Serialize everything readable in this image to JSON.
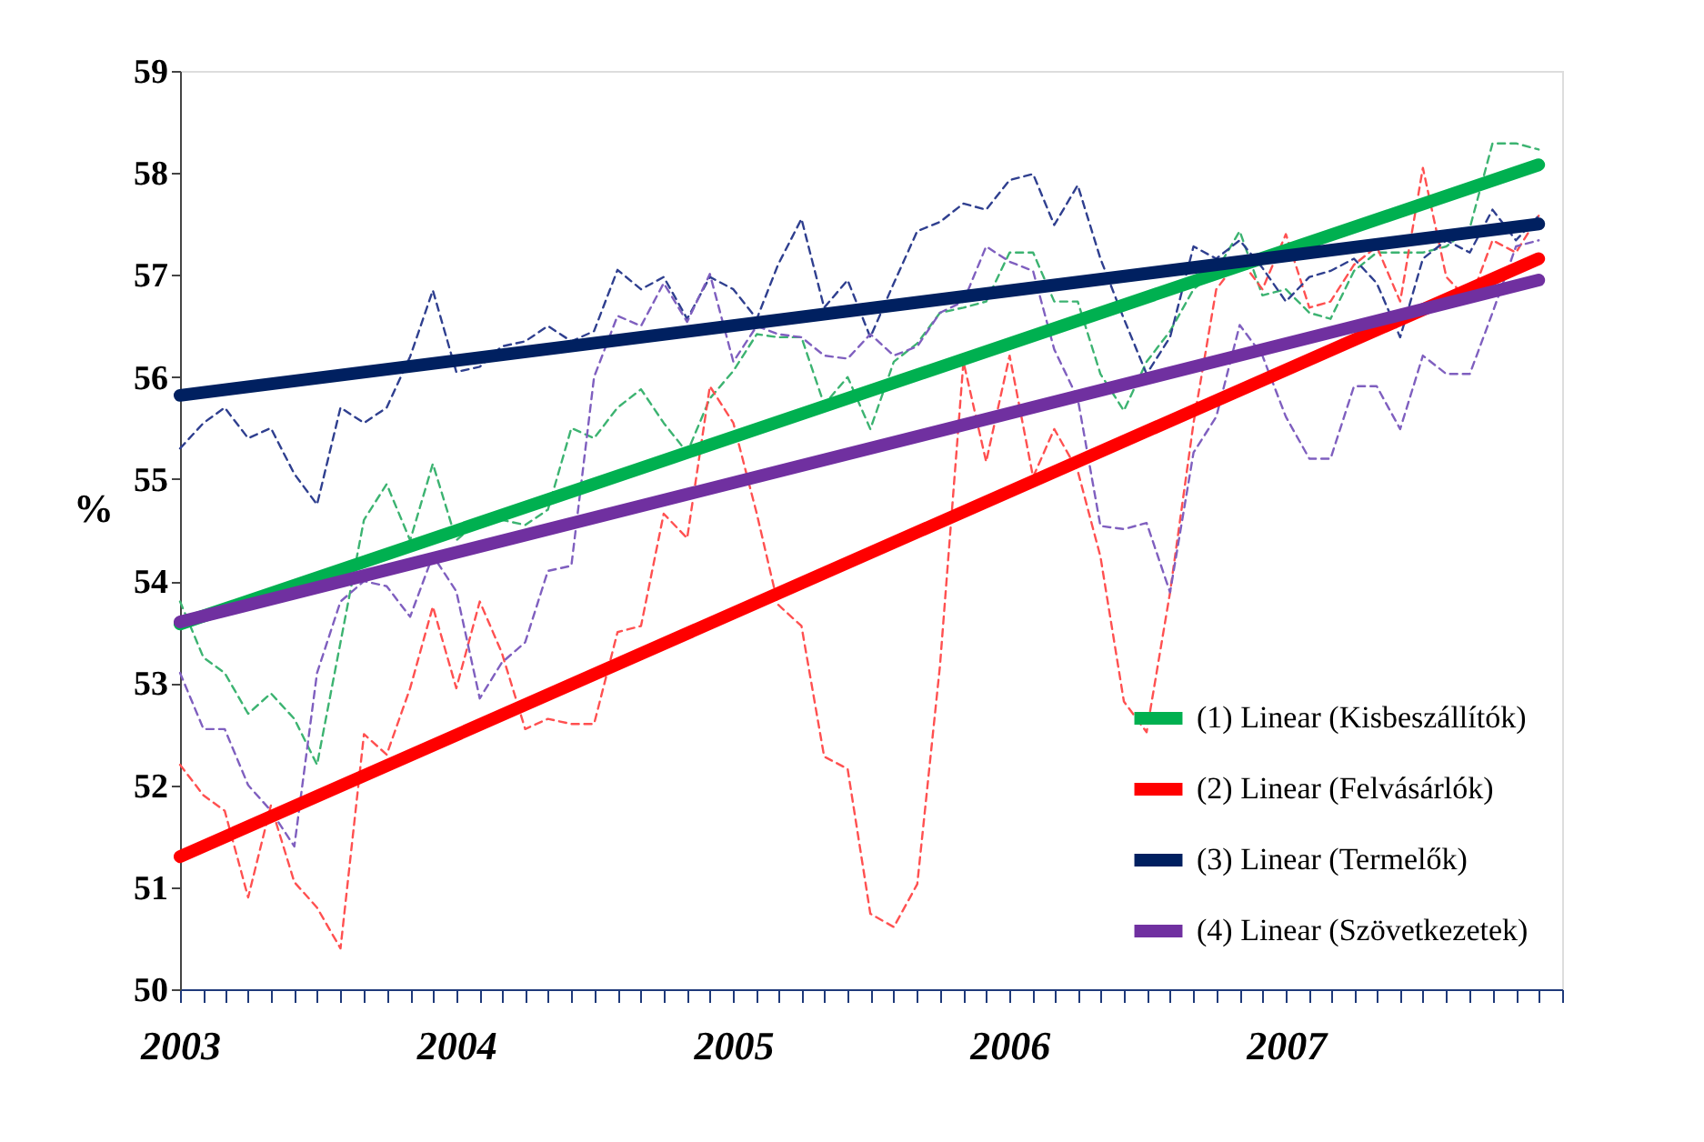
{
  "chart_data": {
    "type": "line",
    "ylabel": "%",
    "x": [
      "2003-01",
      "2003-02",
      "2003-03",
      "2003-04",
      "2003-05",
      "2003-06",
      "2003-07",
      "2003-08",
      "2003-09",
      "2003-10",
      "2003-11",
      "2003-12",
      "2004-01",
      "2004-02",
      "2004-03",
      "2004-04",
      "2004-05",
      "2004-06",
      "2004-07",
      "2004-08",
      "2004-09",
      "2004-10",
      "2004-11",
      "2004-12",
      "2005-01",
      "2005-02",
      "2005-03",
      "2005-04",
      "2005-05",
      "2005-06",
      "2005-07",
      "2005-08",
      "2005-09",
      "2005-10",
      "2005-11",
      "2005-12",
      "2006-01",
      "2006-02",
      "2006-03",
      "2006-04",
      "2006-05",
      "2006-06",
      "2006-07",
      "2006-08",
      "2006-09",
      "2006-10",
      "2006-11",
      "2006-12",
      "2007-01",
      "2007-02",
      "2007-03",
      "2007-04",
      "2007-05",
      "2007-06",
      "2007-07",
      "2007-08",
      "2007-09",
      "2007-10",
      "2007-11",
      "2007-12"
    ],
    "series": [
      {
        "color": "#3cb371",
        "line_style": "dashed",
        "values": [
          53.8,
          53.25,
          53.1,
          52.7,
          52.9,
          52.65,
          52.2,
          53.4,
          54.6,
          54.95,
          54.4,
          55.15,
          54.4,
          54.6,
          54.6,
          54.55,
          54.7,
          55.5,
          55.4,
          55.7,
          55.88,
          55.55,
          55.26,
          55.79,
          56.06,
          56.42,
          56.39,
          56.39,
          55.73,
          56.0,
          55.49,
          56.15,
          56.33,
          56.63,
          56.68,
          56.74,
          57.22,
          57.22,
          56.74,
          56.74,
          56.03,
          55.67,
          56.15,
          56.45,
          56.86,
          57.04,
          57.43,
          56.8,
          56.86,
          56.63,
          56.57,
          57.04,
          57.22,
          57.22,
          57.22,
          57.28,
          57.46,
          58.29,
          58.29,
          58.23
        ]
      },
      {
        "color": "#ff5050",
        "line_style": "dashed",
        "values": [
          52.2,
          51.9,
          51.75,
          50.9,
          51.8,
          51.05,
          50.8,
          50.4,
          52.5,
          52.3,
          52.95,
          53.75,
          52.95,
          53.8,
          53.3,
          52.55,
          52.65,
          52.6,
          52.6,
          53.5,
          53.56,
          54.66,
          54.42,
          55.91,
          55.55,
          54.66,
          53.77,
          53.56,
          52.28,
          52.16,
          50.74,
          50.61,
          51.03,
          53.17,
          56.15,
          55.17,
          56.21,
          55.02,
          55.49,
          55.08,
          54.24,
          52.82,
          52.52,
          53.89,
          55.55,
          56.86,
          57.16,
          56.86,
          57.4,
          56.68,
          56.74,
          57.1,
          57.28,
          56.74,
          58.05,
          56.98,
          56.74,
          57.34,
          57.22,
          57.58
        ]
      },
      {
        "color": "#2f3f8f",
        "line_style": "dashed",
        "values": [
          55.3,
          55.55,
          55.7,
          55.4,
          55.5,
          55.05,
          54.75,
          55.7,
          55.55,
          55.7,
          56.2,
          56.85,
          56.05,
          56.1,
          56.3,
          56.35,
          56.5,
          56.35,
          56.45,
          57.05,
          56.86,
          56.98,
          56.57,
          56.98,
          56.86,
          56.57,
          57.1,
          57.55,
          56.68,
          56.95,
          56.39,
          56.92,
          57.43,
          57.52,
          57.7,
          57.64,
          57.93,
          57.99,
          57.49,
          57.88,
          57.16,
          56.57,
          56.03,
          56.39,
          57.28,
          57.16,
          57.34,
          57.07,
          56.74,
          56.98,
          57.04,
          57.16,
          56.92,
          56.39,
          57.16,
          57.34,
          57.22,
          57.64,
          57.34,
          57.58
        ]
      },
      {
        "color": "#7f5fbf",
        "line_style": "dashed",
        "values": [
          53.1,
          52.55,
          52.55,
          52.0,
          51.75,
          51.4,
          53.1,
          53.8,
          54.0,
          53.95,
          53.65,
          54.25,
          53.9,
          52.85,
          53.2,
          53.4,
          54.1,
          54.15,
          56.0,
          56.6,
          56.5,
          56.92,
          56.54,
          57.01,
          56.15,
          56.5,
          56.42,
          56.39,
          56.21,
          56.18,
          56.42,
          56.21,
          56.3,
          56.63,
          56.74,
          57.28,
          57.13,
          57.04,
          56.27,
          55.79,
          54.54,
          54.51,
          54.57,
          53.89,
          55.26,
          55.61,
          56.51,
          56.21,
          55.61,
          55.2,
          55.2,
          55.91,
          55.91,
          55.49,
          56.21,
          56.03,
          56.03,
          56.63,
          57.28,
          57.34
        ]
      },
      {
        "name": "(1) Linear (Kisbeszállítók)",
        "color": "#00b050",
        "line_style": "solid",
        "x": [
          "2003-01",
          "2007-12"
        ],
        "values": [
          53.58,
          58.08
        ]
      },
      {
        "name": "(2) Linear (Felvásárlók)",
        "color": "#ff0000",
        "line_style": "solid",
        "x": [
          "2003-01",
          "2007-12"
        ],
        "values": [
          51.3,
          57.16
        ]
      },
      {
        "name": "(3) Linear (Termelők)",
        "color": "#002060",
        "line_style": "solid",
        "x": [
          "2003-01",
          "2007-12"
        ],
        "values": [
          55.82,
          57.5
        ]
      },
      {
        "name": "(4) Linear (Szövetkezetek)",
        "color": "#7030a0",
        "line_style": "solid",
        "x": [
          "2003-01",
          "2007-12"
        ],
        "values": [
          53.6,
          56.95
        ]
      }
    ],
    "xlim": [
      "2003-01",
      "2008-01"
    ],
    "xticks": [
      {
        "value": "2003-01",
        "label": "2003"
      },
      {
        "value": "2003-02",
        "label": null
      },
      {
        "value": "2003-03",
        "label": null
      },
      {
        "value": "2003-04",
        "label": null
      },
      {
        "value": "2003-05",
        "label": null
      },
      {
        "value": "2003-06",
        "label": null
      },
      {
        "value": "2003-07",
        "label": null
      },
      {
        "value": "2003-08",
        "label": null
      },
      {
        "value": "2003-09",
        "label": null
      },
      {
        "value": "2003-10",
        "label": null
      },
      {
        "value": "2003-11",
        "label": null
      },
      {
        "value": "2003-12",
        "label": null
      },
      {
        "value": "2004-01",
        "label": "2004"
      },
      {
        "value": "2004-02",
        "label": null
      },
      {
        "value": "2004-03",
        "label": null
      },
      {
        "value": "2004-04",
        "label": null
      },
      {
        "value": "2004-05",
        "label": null
      },
      {
        "value": "2004-06",
        "label": null
      },
      {
        "value": "2004-07",
        "label": null
      },
      {
        "value": "2004-08",
        "label": null
      },
      {
        "value": "2004-09",
        "label": null
      },
      {
        "value": "2004-10",
        "label": null
      },
      {
        "value": "2004-11",
        "label": null
      },
      {
        "value": "2004-12",
        "label": null
      },
      {
        "value": "2005-01",
        "label": "2005"
      },
      {
        "value": "2005-02",
        "label": null
      },
      {
        "value": "2005-03",
        "label": null
      },
      {
        "value": "2005-04",
        "label": null
      },
      {
        "value": "2005-05",
        "label": null
      },
      {
        "value": "2005-06",
        "label": null
      },
      {
        "value": "2005-07",
        "label": null
      },
      {
        "value": "2005-08",
        "label": null
      },
      {
        "value": "2005-09",
        "label": null
      },
      {
        "value": "2005-10",
        "label": null
      },
      {
        "value": "2005-11",
        "label": null
      },
      {
        "value": "2005-12",
        "label": null
      },
      {
        "value": "2006-01",
        "label": "2006"
      },
      {
        "value": "2006-02",
        "label": null
      },
      {
        "value": "2006-03",
        "label": null
      },
      {
        "value": "2006-04",
        "label": null
      },
      {
        "value": "2006-05",
        "label": null
      },
      {
        "value": "2006-06",
        "label": null
      },
      {
        "value": "2006-07",
        "label": null
      },
      {
        "value": "2006-08",
        "label": null
      },
      {
        "value": "2006-09",
        "label": null
      },
      {
        "value": "2006-10",
        "label": null
      },
      {
        "value": "2006-11",
        "label": null
      },
      {
        "value": "2006-12",
        "label": null
      },
      {
        "value": "2007-01",
        "label": "2007"
      },
      {
        "value": "2007-02",
        "label": null
      },
      {
        "value": "2007-03",
        "label": null
      },
      {
        "value": "2007-04",
        "label": null
      },
      {
        "value": "2007-05",
        "label": null
      },
      {
        "value": "2007-06",
        "label": null
      },
      {
        "value": "2007-07",
        "label": null
      },
      {
        "value": "2007-08",
        "label": null
      },
      {
        "value": "2007-09",
        "label": null
      },
      {
        "value": "2007-10",
        "label": null
      },
      {
        "value": "2007-11",
        "label": null
      },
      {
        "value": "2007-12",
        "label": null
      },
      {
        "value": "2008-01",
        "label": null
      }
    ],
    "ylim": [
      50,
      59
    ],
    "yticks": [
      50,
      51,
      52,
      53,
      54,
      55,
      56,
      57,
      58,
      59
    ],
    "grid": false,
    "legend": "bottom right",
    "marker": "none"
  }
}
